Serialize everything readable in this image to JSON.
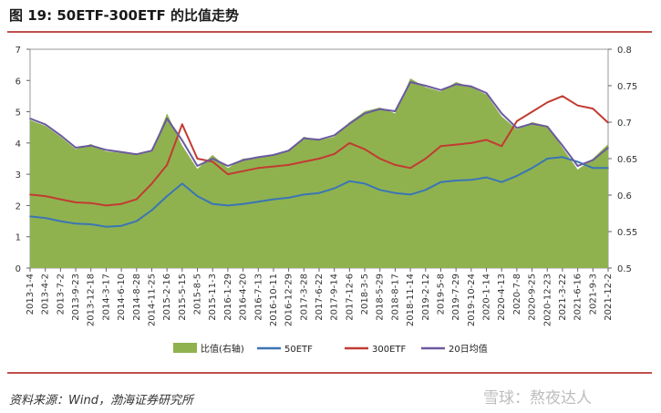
{
  "header": {
    "title": "图 19:  50ETF-300ETF 的比值走势"
  },
  "footer": {
    "source": "资料来源：Wind，渤海证券研究所",
    "watermark": "雪球：熬夜达人"
  },
  "chart_data": {
    "type": "area",
    "title": "",
    "left_axis": {
      "ylim": [
        0,
        7
      ],
      "ticks": [
        0,
        1,
        2,
        3,
        4,
        5,
        6,
        7
      ]
    },
    "right_axis": {
      "ylim": [
        0.5,
        0.8
      ],
      "ticks": [
        0.5,
        0.55,
        0.6,
        0.65,
        0.7,
        0.75,
        0.8
      ]
    },
    "categories": [
      "2013-1-4",
      "2013-4-2",
      "2013-7-2",
      "2013-9-23",
      "2013-12-18",
      "2014-3-17",
      "2014-6-10",
      "2014-8-28",
      "2014-11-25",
      "2015-2-16",
      "2015-5-15",
      "2015-8-5",
      "2015-11-3",
      "2016-1-29",
      "2016-4-20",
      "2016-7-13",
      "2016-10-11",
      "2016-12-29",
      "2017-3-28",
      "2017-6-22",
      "2017-9-14",
      "2017-12-6",
      "2018-3-5",
      "2018-5-29",
      "2018-8-17",
      "2018-11-14",
      "2019-2-12",
      "2019-5-8",
      "2019-7-29",
      "2019-10-24",
      "2020-1-14",
      "2020-4-13",
      "2020-7-8",
      "2020-9-25",
      "2020-12-23",
      "2021-3-22",
      "2021-6-16",
      "2021-9-3",
      "2021-12-2"
    ],
    "grid": false,
    "legend_position": "bottom",
    "series": [
      {
        "name": "比值(右轴)",
        "axis": "right",
        "kind": "area",
        "color": "#8fb24f",
        "values": [
          0.703,
          0.695,
          0.68,
          0.663,
          0.67,
          0.66,
          0.658,
          0.655,
          0.66,
          0.712,
          0.668,
          0.636,
          0.655,
          0.637,
          0.65,
          0.652,
          0.655,
          0.66,
          0.68,
          0.675,
          0.68,
          0.7,
          0.715,
          0.72,
          0.712,
          0.76,
          0.748,
          0.742,
          0.755,
          0.748,
          0.738,
          0.708,
          0.69,
          0.7,
          0.695,
          0.665,
          0.635,
          0.65,
          0.67
        ]
      },
      {
        "name": "50ETF",
        "axis": "left",
        "kind": "line",
        "color": "#3b75b5",
        "values": [
          1.65,
          1.6,
          1.5,
          1.42,
          1.4,
          1.32,
          1.35,
          1.5,
          1.85,
          2.3,
          2.7,
          2.3,
          2.05,
          2.0,
          2.05,
          2.12,
          2.2,
          2.25,
          2.35,
          2.4,
          2.55,
          2.78,
          2.7,
          2.5,
          2.4,
          2.35,
          2.5,
          2.75,
          2.8,
          2.82,
          2.9,
          2.75,
          2.95,
          3.2,
          3.5,
          3.55,
          3.4,
          3.2,
          3.2
        ]
      },
      {
        "name": "300ETF",
        "axis": "left",
        "kind": "line",
        "color": "#c23b32",
        "values": [
          2.35,
          2.3,
          2.2,
          2.1,
          2.08,
          2.0,
          2.05,
          2.2,
          2.7,
          3.3,
          4.6,
          3.5,
          3.4,
          3.0,
          3.1,
          3.2,
          3.25,
          3.3,
          3.4,
          3.5,
          3.65,
          4.0,
          3.8,
          3.5,
          3.3,
          3.2,
          3.5,
          3.9,
          3.95,
          4.0,
          4.1,
          3.9,
          4.7,
          5.0,
          5.3,
          5.5,
          5.2,
          5.1,
          4.65
        ]
      },
      {
        "name": "20日均值",
        "axis": "right",
        "kind": "line",
        "color": "#6b5a9e",
        "values": [
          0.705,
          0.697,
          0.682,
          0.665,
          0.668,
          0.662,
          0.659,
          0.656,
          0.661,
          0.705,
          0.675,
          0.64,
          0.65,
          0.64,
          0.648,
          0.652,
          0.655,
          0.661,
          0.678,
          0.676,
          0.682,
          0.698,
          0.712,
          0.718,
          0.715,
          0.755,
          0.75,
          0.744,
          0.752,
          0.749,
          0.74,
          0.712,
          0.692,
          0.698,
          0.694,
          0.668,
          0.64,
          0.648,
          0.665
        ]
      }
    ]
  }
}
